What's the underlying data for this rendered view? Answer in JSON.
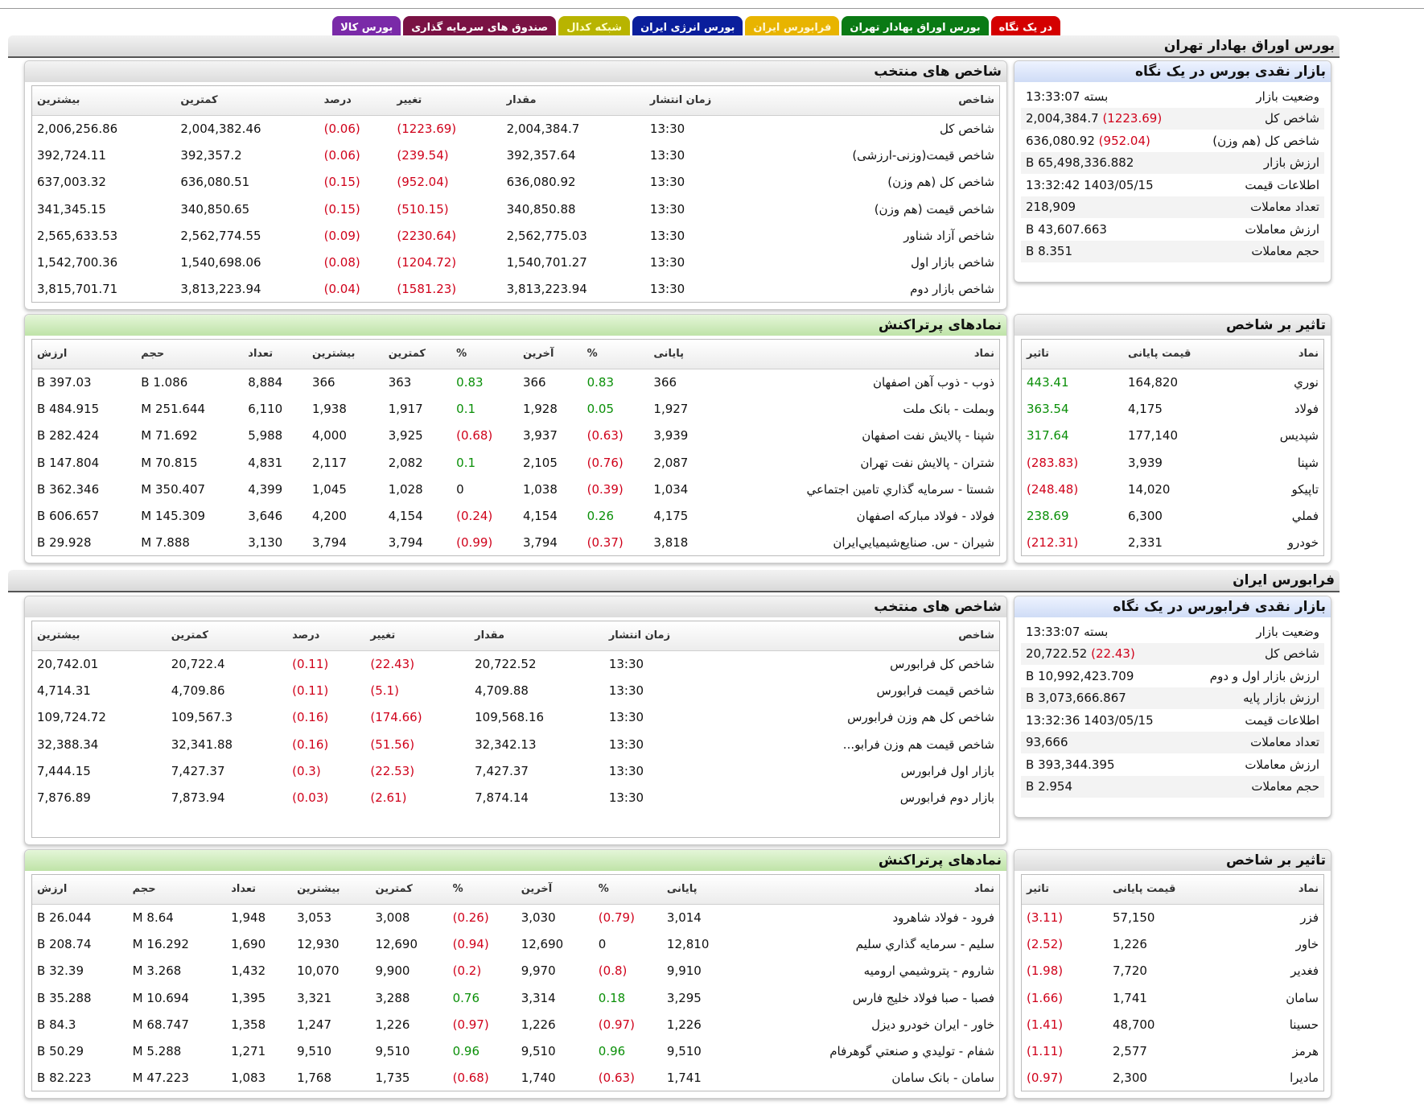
{
  "tabs": [
    {
      "label": "در یک نگاه",
      "bg": "#d40000",
      "fg": "#ffffff"
    },
    {
      "label": "بورس اوراق بهادار تهران",
      "bg": "#0a7a14",
      "fg": "#ffffff"
    },
    {
      "label": "فرابورس ایران",
      "bg": "#e8b400",
      "fg": "#fff7d6"
    },
    {
      "label": "بورس انرژی ایران",
      "bg": "#0a1e9c",
      "fg": "#ffffff"
    },
    {
      "label": "شبکه کدال",
      "bg": "#b8b400",
      "fg": "#ffffcc"
    },
    {
      "label": "صندوق های سرمایه گذاری",
      "bg": "#7a1244",
      "fg": "#ffffff"
    },
    {
      "label": "بورس کالا",
      "bg": "#7a2aa8",
      "fg": "#ffffff"
    }
  ],
  "tse": {
    "section_title": "بورس اوراق بهادار تهران",
    "glance": {
      "title": "بازار نقدی بورس در یک نگاه",
      "rows": [
        {
          "k": "وضعیت بازار",
          "v": "بسته 13:33:07",
          "chg": ""
        },
        {
          "k": "شاخص کل",
          "v": "2,004,384.7",
          "chg": "(1223.69)"
        },
        {
          "k": "شاخص کل (هم وزن)",
          "v": "636,080.92",
          "chg": "(952.04)"
        },
        {
          "k": "ارزش بازار",
          "v": "65,498,336.882 B",
          "chg": ""
        },
        {
          "k": "اطلاعات قیمت",
          "v": "1403/05/15 13:32:42",
          "chg": ""
        },
        {
          "k": "تعداد معاملات",
          "v": "218,909",
          "chg": ""
        },
        {
          "k": "ارزش معاملات",
          "v": "43,607.663 B",
          "chg": ""
        },
        {
          "k": "حجم معاملات",
          "v": "8.351 B",
          "chg": ""
        }
      ]
    },
    "indices": {
      "title": "شاخص های منتخب",
      "headers": [
        "شاخص",
        "زمان انتشار",
        "مقدار",
        "تغییر",
        "درصد",
        "کمترین",
        "بیشترین"
      ],
      "rows": [
        [
          "شاخص کل",
          "13:30",
          "2,004,384.7",
          "(1223.69)",
          "(0.06)",
          "2,004,382.46",
          "2,006,256.86"
        ],
        [
          "شاخص قیمت(وزنی-ارزشی)",
          "13:30",
          "392,357.64",
          "(239.54)",
          "(0.06)",
          "392,357.2",
          "392,724.11"
        ],
        [
          "شاخص کل (هم وزن)",
          "13:30",
          "636,080.92",
          "(952.04)",
          "(0.15)",
          "636,080.51",
          "637,003.32"
        ],
        [
          "شاخص قیمت (هم وزن)",
          "13:30",
          "340,850.88",
          "(510.15)",
          "(0.15)",
          "340,850.65",
          "341,345.15"
        ],
        [
          "شاخص آزاد شناور",
          "13:30",
          "2,562,775.03",
          "(2230.64)",
          "(0.09)",
          "2,562,774.55",
          "2,565,633.53"
        ],
        [
          "شاخص بازار اول",
          "13:30",
          "1,540,701.27",
          "(1204.72)",
          "(0.08)",
          "1,540,698.06",
          "1,542,700.36"
        ],
        [
          "شاخص بازار دوم",
          "13:30",
          "3,813,223.94",
          "(1581.23)",
          "(0.04)",
          "3,813,223.94",
          "3,815,701.71"
        ]
      ]
    },
    "impact": {
      "title": "تاثیر بر شاخص",
      "headers": [
        "نماد",
        "قیمت پایانی",
        "تاثیر"
      ],
      "rows": [
        [
          "نوري",
          "164,820",
          "443.41"
        ],
        [
          "فولاد",
          "4,175",
          "363.54"
        ],
        [
          "شپديس",
          "177,140",
          "317.64"
        ],
        [
          "شپنا",
          "3,939",
          "(283.83)"
        ],
        [
          "تاپيكو",
          "14,020",
          "(248.48)"
        ],
        [
          "فملي",
          "6,300",
          "238.69"
        ],
        [
          "خودرو",
          "2,331",
          "(212.31)"
        ]
      ]
    },
    "active": {
      "title": "نمادهای پرتراکنش",
      "headers": [
        "نماد",
        "پایانی",
        "%",
        "آخرین",
        "%",
        "کمترین",
        "بیشترین",
        "تعداد",
        "حجم",
        "ارزش"
      ],
      "rows": [
        [
          "ذوب - ذوب آهن اصفهان",
          "366",
          "0.83",
          "366",
          "0.83",
          "363",
          "366",
          "8,884",
          "1.086 B",
          "397.03 B"
        ],
        [
          "وبملت - بانک ملت",
          "1,927",
          "0.05",
          "1,928",
          "0.1",
          "1,917",
          "1,938",
          "6,110",
          "251.644 M",
          "484.915 B"
        ],
        [
          "شپنا - پالایش نفت اصفهان",
          "3,939",
          "(0.63)",
          "3,937",
          "(0.68)",
          "3,925",
          "4,000",
          "5,988",
          "71.692 M",
          "282.424 B"
        ],
        [
          "شتران - پالایش نفت تهران",
          "2,087",
          "(0.76)",
          "2,105",
          "0.1",
          "2,082",
          "2,117",
          "4,831",
          "70.815 M",
          "147.804 B"
        ],
        [
          "شستا - سرمايه گذاري تامين اجتماعي",
          "1,034",
          "(0.39)",
          "1,038",
          "0",
          "1,028",
          "1,045",
          "4,399",
          "350.407 M",
          "362.346 B"
        ],
        [
          "فولاد - فولاد مباركه اصفهان",
          "4,175",
          "0.26",
          "4,154",
          "(0.24)",
          "4,154",
          "4,200",
          "3,646",
          "145.309 M",
          "606.657 B"
        ],
        [
          "شيران - س. صنايع‌شيميايي‌ايران",
          "3,818",
          "(0.37)",
          "3,794",
          "(0.99)",
          "3,794",
          "3,794",
          "3,130",
          "7.888 M",
          "29.928 B"
        ]
      ]
    }
  },
  "ifb": {
    "section_title": "فرابورس ایران",
    "glance": {
      "title": "بازار نقدی فرابورس در یک نگاه",
      "rows": [
        {
          "k": "وضعیت بازار",
          "v": "بسته 13:33:07",
          "chg": ""
        },
        {
          "k": "شاخص کل",
          "v": "20,722.52",
          "chg": "(22.43)"
        },
        {
          "k": "ارزش بازار اول و دوم",
          "v": "10,992,423.709 B",
          "chg": ""
        },
        {
          "k": "ارزش بازار پایه",
          "v": "3,073,666.867 B",
          "chg": ""
        },
        {
          "k": "اطلاعات قیمت",
          "v": "1403/05/15 13:32:36",
          "chg": ""
        },
        {
          "k": "تعداد معاملات",
          "v": "93,666",
          "chg": ""
        },
        {
          "k": "ارزش معاملات",
          "v": "393,344.395 B",
          "chg": ""
        },
        {
          "k": "حجم معاملات",
          "v": "2.954 B",
          "chg": ""
        }
      ]
    },
    "indices": {
      "title": "شاخص های منتخب",
      "headers": [
        "شاخص",
        "زمان انتشار",
        "مقدار",
        "تغییر",
        "درصد",
        "کمترین",
        "بیشترین"
      ],
      "rows": [
        [
          "شاخص کل فرابورس",
          "13:30",
          "20,722.52",
          "(22.43)",
          "(0.11)",
          "20,722.4",
          "20,742.01"
        ],
        [
          "شاخص قیمت فرابورس",
          "13:30",
          "4,709.88",
          "(5.1)",
          "(0.11)",
          "4,709.86",
          "4,714.31"
        ],
        [
          "شاخص کل هم وزن فرابورس",
          "13:30",
          "109,568.16",
          "(174.66)",
          "(0.16)",
          "109,567.3",
          "109,724.72"
        ],
        [
          "شاخص قیمت هم وزن فرابو...",
          "13:30",
          "32,342.13",
          "(51.56)",
          "(0.16)",
          "32,341.88",
          "32,388.34"
        ],
        [
          "بازار اول فرابورس",
          "13:30",
          "7,427.37",
          "(22.53)",
          "(0.3)",
          "7,427.37",
          "7,444.15"
        ],
        [
          "بازار دوم فرابورس",
          "13:30",
          "7,874.14",
          "(2.61)",
          "(0.03)",
          "7,873.94",
          "7,876.89"
        ]
      ]
    },
    "impact": {
      "title": "تاثیر بر شاخص",
      "headers": [
        "نماد",
        "قیمت پایانی",
        "تاثیر"
      ],
      "rows": [
        [
          "فزر",
          "57,150",
          "(3.11)"
        ],
        [
          "خاور",
          "1,226",
          "(2.52)"
        ],
        [
          "فغدير",
          "7,720",
          "(1.98)"
        ],
        [
          "سامان",
          "1,741",
          "(1.66)"
        ],
        [
          "حسينا",
          "48,700",
          "(1.41)"
        ],
        [
          "هرمز",
          "2,577",
          "(1.11)"
        ],
        [
          "ماديرا",
          "2,300",
          "(0.97)"
        ]
      ]
    },
    "active": {
      "title": "نمادهای پرتراکنش",
      "headers": [
        "نماد",
        "پایانی",
        "%",
        "آخرین",
        "%",
        "کمترین",
        "بیشترین",
        "تعداد",
        "حجم",
        "ارزش"
      ],
      "rows": [
        [
          "فرود - فولاد شاهرود",
          "3,014",
          "(0.79)",
          "3,030",
          "(0.26)",
          "3,008",
          "3,053",
          "1,948",
          "8.64 M",
          "26.044 B"
        ],
        [
          "سليم - سرمايه گذاري سليم",
          "12,810",
          "0",
          "12,690",
          "(0.94)",
          "12,690",
          "12,930",
          "1,690",
          "16.292 M",
          "208.74 B"
        ],
        [
          "شاروم - پتروشيمي اروميه",
          "9,910",
          "(0.8)",
          "9,970",
          "(0.2)",
          "9,900",
          "10,070",
          "1,432",
          "3.268 M",
          "32.39 B"
        ],
        [
          "فصبا - صبا فولاد خليج فارس",
          "3,295",
          "0.18",
          "3,314",
          "0.76",
          "3,288",
          "3,321",
          "1,395",
          "10.694 M",
          "35.288 B"
        ],
        [
          "خاور - ايران خودرو ديزل",
          "1,226",
          "(0.97)",
          "1,226",
          "(0.97)",
          "1,226",
          "1,247",
          "1,358",
          "68.747 M",
          "84.3 B"
        ],
        [
          "شفام - توليدي و صنعتي گوهرفام",
          "9,510",
          "0.96",
          "9,510",
          "0.96",
          "9,510",
          "9,510",
          "1,271",
          "5.288 M",
          "50.29 B"
        ],
        [
          "سامان - بانک سامان",
          "1,741",
          "(0.63)",
          "1,740",
          "(0.68)",
          "1,735",
          "1,768",
          "1,083",
          "47.223 M",
          "82.223 B"
        ]
      ]
    }
  }
}
